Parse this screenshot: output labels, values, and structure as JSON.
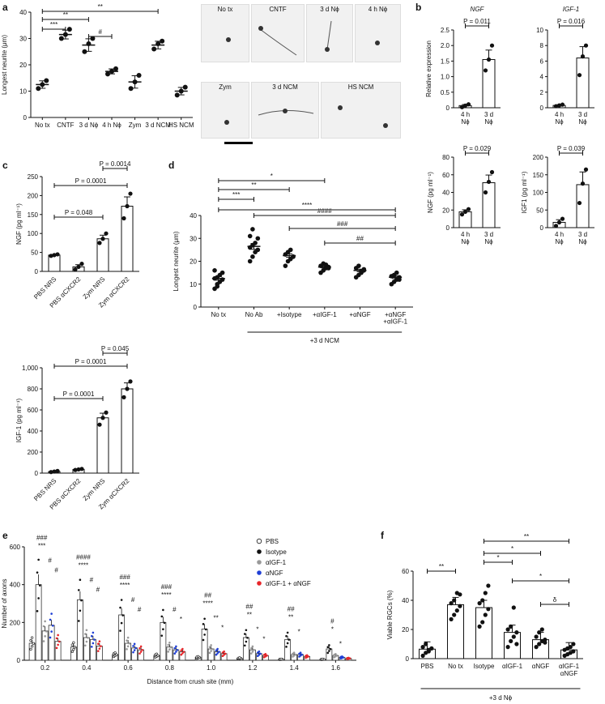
{
  "panels": {
    "a": "a",
    "b": "b",
    "c": "c",
    "d": "d",
    "e": "e",
    "f": "f"
  },
  "chart_data": [
    {
      "id": "a",
      "type": "scatter",
      "ylabel": "Longest neurite (μm)",
      "ylim": [
        0,
        40
      ],
      "yticks": [
        0,
        10,
        20,
        30,
        40
      ],
      "categories": [
        "No tx",
        "CNTF",
        "3 d Nϕ",
        "4 h Nϕ",
        "Zym",
        "3 d NCM",
        "HS NCM"
      ],
      "means": [
        12.5,
        31.5,
        27.5,
        17.5,
        13.5,
        27.5,
        10
      ],
      "points": [
        [
          11,
          12.5,
          14
        ],
        [
          30,
          31.5,
          33.5
        ],
        [
          25,
          28,
          30
        ],
        [
          16.5,
          17.5,
          18.5
        ],
        [
          11,
          13.5,
          16
        ],
        [
          26,
          28,
          29
        ],
        [
          8.5,
          10,
          11.5
        ]
      ],
      "significance": [
        {
          "label": "**",
          "from": 0,
          "to": 5
        },
        {
          "label": "**",
          "from": 0,
          "to": 2
        },
        {
          "label": "***",
          "from": 0,
          "to": 1
        },
        {
          "label": "#",
          "from": 2,
          "to": 3
        }
      ],
      "micrograph_labels": [
        "No tx",
        "CNTF",
        "3 d Nϕ",
        "4 h Nϕ",
        "Zym",
        "3 d NCM",
        "HS NCM"
      ]
    },
    {
      "id": "b-NGF-mRNA",
      "type": "bar",
      "title": "NGF",
      "ylabel": "Relative expression",
      "ylim": [
        0,
        2.5
      ],
      "yticks": [
        "0",
        "0.5",
        "1.0",
        "1.5",
        "2.0",
        "2.5"
      ],
      "categories": [
        "4 h Nϕ",
        "3 d Nϕ"
      ],
      "values": [
        0.07,
        1.55
      ],
      "points": [
        [
          0.02,
          0.07,
          0.11
        ],
        [
          1.2,
          1.55,
          2.0
        ]
      ],
      "pvalue": "P = 0.011"
    },
    {
      "id": "b-IGF1-mRNA",
      "type": "bar",
      "title": "IGF-1",
      "ylim": [
        0,
        10
      ],
      "yticks": [
        "0",
        "2",
        "4",
        "6",
        "8",
        "10"
      ],
      "categories": [
        "4 h Nϕ",
        "3 d Nϕ"
      ],
      "values": [
        0.3,
        6.4
      ],
      "points": [
        [
          0.2,
          0.3,
          0.4
        ],
        [
          4.2,
          6.6,
          8.0
        ]
      ],
      "pvalue": "P = 0.016"
    },
    {
      "id": "b-NGF-protein",
      "type": "bar",
      "ylabel": "NGF (pg ml⁻¹)",
      "ylim": [
        0,
        80
      ],
      "yticks": [
        "0",
        "20",
        "40",
        "60",
        "80"
      ],
      "categories": [
        "4 h Nϕ",
        "3 d Nϕ"
      ],
      "values": [
        18,
        51
      ],
      "points": [
        [
          15,
          18,
          21
        ],
        [
          40,
          52,
          63
        ]
      ],
      "pvalue": "P = 0.029"
    },
    {
      "id": "b-IGF1-protein",
      "type": "bar",
      "ylabel": "IGF1 (pg ml⁻¹)",
      "ylim": [
        0,
        200
      ],
      "yticks": [
        "0",
        "50",
        "100",
        "150",
        "200"
      ],
      "categories": [
        "4 h Nϕ",
        "3 d Nϕ"
      ],
      "values": [
        15,
        122
      ],
      "points": [
        [
          5,
          15,
          25
        ],
        [
          70,
          125,
          165
        ]
      ],
      "pvalue": "P = 0.039"
    },
    {
      "id": "c-NGF",
      "type": "bar",
      "ylabel": "NGF (pg ml⁻¹)",
      "ylim": [
        0,
        250
      ],
      "yticks": [
        "0",
        "50",
        "100",
        "150",
        "200",
        "250"
      ],
      "categories": [
        "PBS NRS",
        "PBS αCXCR2",
        "Zym NRS",
        "Zym αCXCR2"
      ],
      "values": [
        43,
        12,
        86,
        172
      ],
      "points": [
        [
          41,
          43,
          45
        ],
        [
          5,
          12,
          20
        ],
        [
          75,
          86,
          100
        ],
        [
          140,
          172,
          205
        ]
      ],
      "pvalues": [
        {
          "label": "P = 0.0014",
          "from": 2,
          "to": 3
        },
        {
          "label": "P = 0.0001",
          "from": 0,
          "to": 3
        },
        {
          "label": "P = 0.048",
          "from": 0,
          "to": 2
        }
      ]
    },
    {
      "id": "c-IGF1",
      "type": "bar",
      "ylabel": "IGF-1 (pg ml⁻¹)",
      "ylim": [
        0,
        1000
      ],
      "yticks": [
        "0",
        "200",
        "400",
        "600",
        "800",
        "1,000"
      ],
      "categories": [
        "PBS NRS",
        "PBS αCXCR2",
        "Zym NRS",
        "Zym αCXCR2"
      ],
      "values": [
        15,
        35,
        525,
        800
      ],
      "points": [
        [
          10,
          15,
          20
        ],
        [
          30,
          35,
          40
        ],
        [
          460,
          525,
          575
        ],
        [
          720,
          800,
          870
        ]
      ],
      "pvalues": [
        {
          "label": "P = 0.045",
          "from": 2,
          "to": 3
        },
        {
          "label": "P = 0.0001",
          "from": 0,
          "to": 3
        },
        {
          "label": "P = 0.0001",
          "from": 0,
          "to": 2
        }
      ]
    },
    {
      "id": "d",
      "type": "scatter",
      "ylabel": "Longest neurite (μm)",
      "ylim": [
        0,
        40
      ],
      "yticks": [
        "0",
        "10",
        "20",
        "30",
        "40"
      ],
      "categories": [
        "No tx",
        "No Ab",
        "+Isotype",
        "+αIGF-1",
        "+αNGF",
        "+αNGF\n+αIGF-1"
      ],
      "means": [
        12.5,
        26.5,
        22.5,
        17.5,
        16,
        13
      ],
      "points": [
        [
          8,
          10,
          11,
          12,
          12.5,
          13,
          14,
          15,
          16,
          9
        ],
        [
          20,
          22,
          24,
          25,
          26,
          27,
          28,
          30,
          31,
          34
        ],
        [
          18,
          20,
          21,
          22,
          23,
          24,
          25,
          22
        ],
        [
          15,
          16,
          17,
          17.5,
          18,
          19,
          18.5,
          17
        ],
        [
          13,
          14,
          15,
          16,
          17,
          18,
          15.5,
          16.5
        ],
        [
          10,
          11,
          12,
          13,
          13.5,
          14,
          15,
          12
        ]
      ],
      "significance": [
        {
          "label": "*",
          "from": 0,
          "to": 3
        },
        {
          "label": "**",
          "from": 0,
          "to": 2
        },
        {
          "label": "***",
          "from": 0,
          "to": 1
        },
        {
          "label": "****",
          "from": 0,
          "to": 5
        },
        {
          "label": "####",
          "from": 1,
          "to": 5
        },
        {
          "label": "###",
          "from": 2,
          "to": 5
        },
        {
          "label": "##",
          "from": 3,
          "to": 5
        }
      ],
      "group_label": "+3 d  NCM"
    },
    {
      "id": "e",
      "type": "bar",
      "xlabel": "Distance from crush site (mm)",
      "ylabel": "Number of axons",
      "ylim": [
        0,
        600
      ],
      "yticks": [
        "0",
        "200",
        "400",
        "600"
      ],
      "categories": [
        "0.2",
        "0.4",
        "0.6",
        "0.8",
        "1.0",
        "1.2",
        "1.4",
        "1.6"
      ],
      "legend_position": "top-right",
      "series": [
        {
          "name": "PBS",
          "color": "#ffffff",
          "values": [
            90,
            70,
            30,
            25,
            15,
            10,
            5,
            5
          ]
        },
        {
          "name": "Isotype",
          "color": "#111111",
          "values": [
            400,
            320,
            240,
            200,
            165,
            120,
            110,
            60
          ]
        },
        {
          "name": "αIGF-1",
          "color": "#999999",
          "values": [
            155,
            120,
            90,
            70,
            60,
            55,
            30,
            25
          ]
        },
        {
          "name": "αNGF",
          "color": "#1f3fd6",
          "values": [
            185,
            110,
            65,
            55,
            45,
            35,
            30,
            15
          ]
        },
        {
          "name": "αIGF-1 + αNGF",
          "color": "#e8262a",
          "values": [
            100,
            75,
            55,
            45,
            35,
            25,
            20,
            10
          ]
        }
      ],
      "annotations": [
        [
          "###",
          "***",
          "#",
          "#"
        ],
        [
          "####",
          "****",
          "#",
          "#"
        ],
        [
          "###",
          "****",
          "#",
          "#"
        ],
        [
          "###",
          "****",
          "#",
          "*"
        ],
        [
          "##",
          "****",
          "**",
          "*"
        ],
        [
          "##",
          "**",
          "*",
          "*"
        ],
        [
          "##",
          "**",
          "*",
          ""
        ],
        [
          "#",
          "*",
          "*",
          ""
        ]
      ]
    },
    {
      "id": "f",
      "type": "scatter",
      "ylabel": "Viable RGCs (%)",
      "ylim": [
        0,
        60
      ],
      "yticks": [
        "0",
        "20",
        "40",
        "60"
      ],
      "categories": [
        "PBS",
        "No tx",
        "Isotype",
        "αIGF-1",
        "αNGF",
        "αIGF-1\nαNGF"
      ],
      "means": [
        6.5,
        37,
        35,
        18,
        13,
        6
      ],
      "points": [
        [
          2,
          4,
          6,
          7,
          8,
          10,
          5
        ],
        [
          27,
          30,
          33,
          36,
          38,
          40,
          45,
          44
        ],
        [
          22,
          25,
          30,
          34,
          38,
          40,
          45,
          50
        ],
        [
          8,
          12,
          15,
          18,
          20,
          22,
          35,
          10
        ],
        [
          8,
          10,
          12,
          13,
          15,
          18,
          20,
          11
        ],
        [
          2,
          3,
          4,
          5,
          6,
          7,
          8,
          10
        ]
      ],
      "significance": [
        {
          "label": "**",
          "from": 0,
          "to": 1
        },
        {
          "label": "**",
          "from": 2,
          "to": 5
        },
        {
          "label": "*",
          "from": 2,
          "to": 4
        },
        {
          "label": "*",
          "from": 2,
          "to": 3
        },
        {
          "label": "*",
          "from": 3,
          "to": 5
        },
        {
          "label": "δ",
          "from": 4,
          "to": 5
        }
      ],
      "group_label": "+3 d Nϕ"
    }
  ]
}
